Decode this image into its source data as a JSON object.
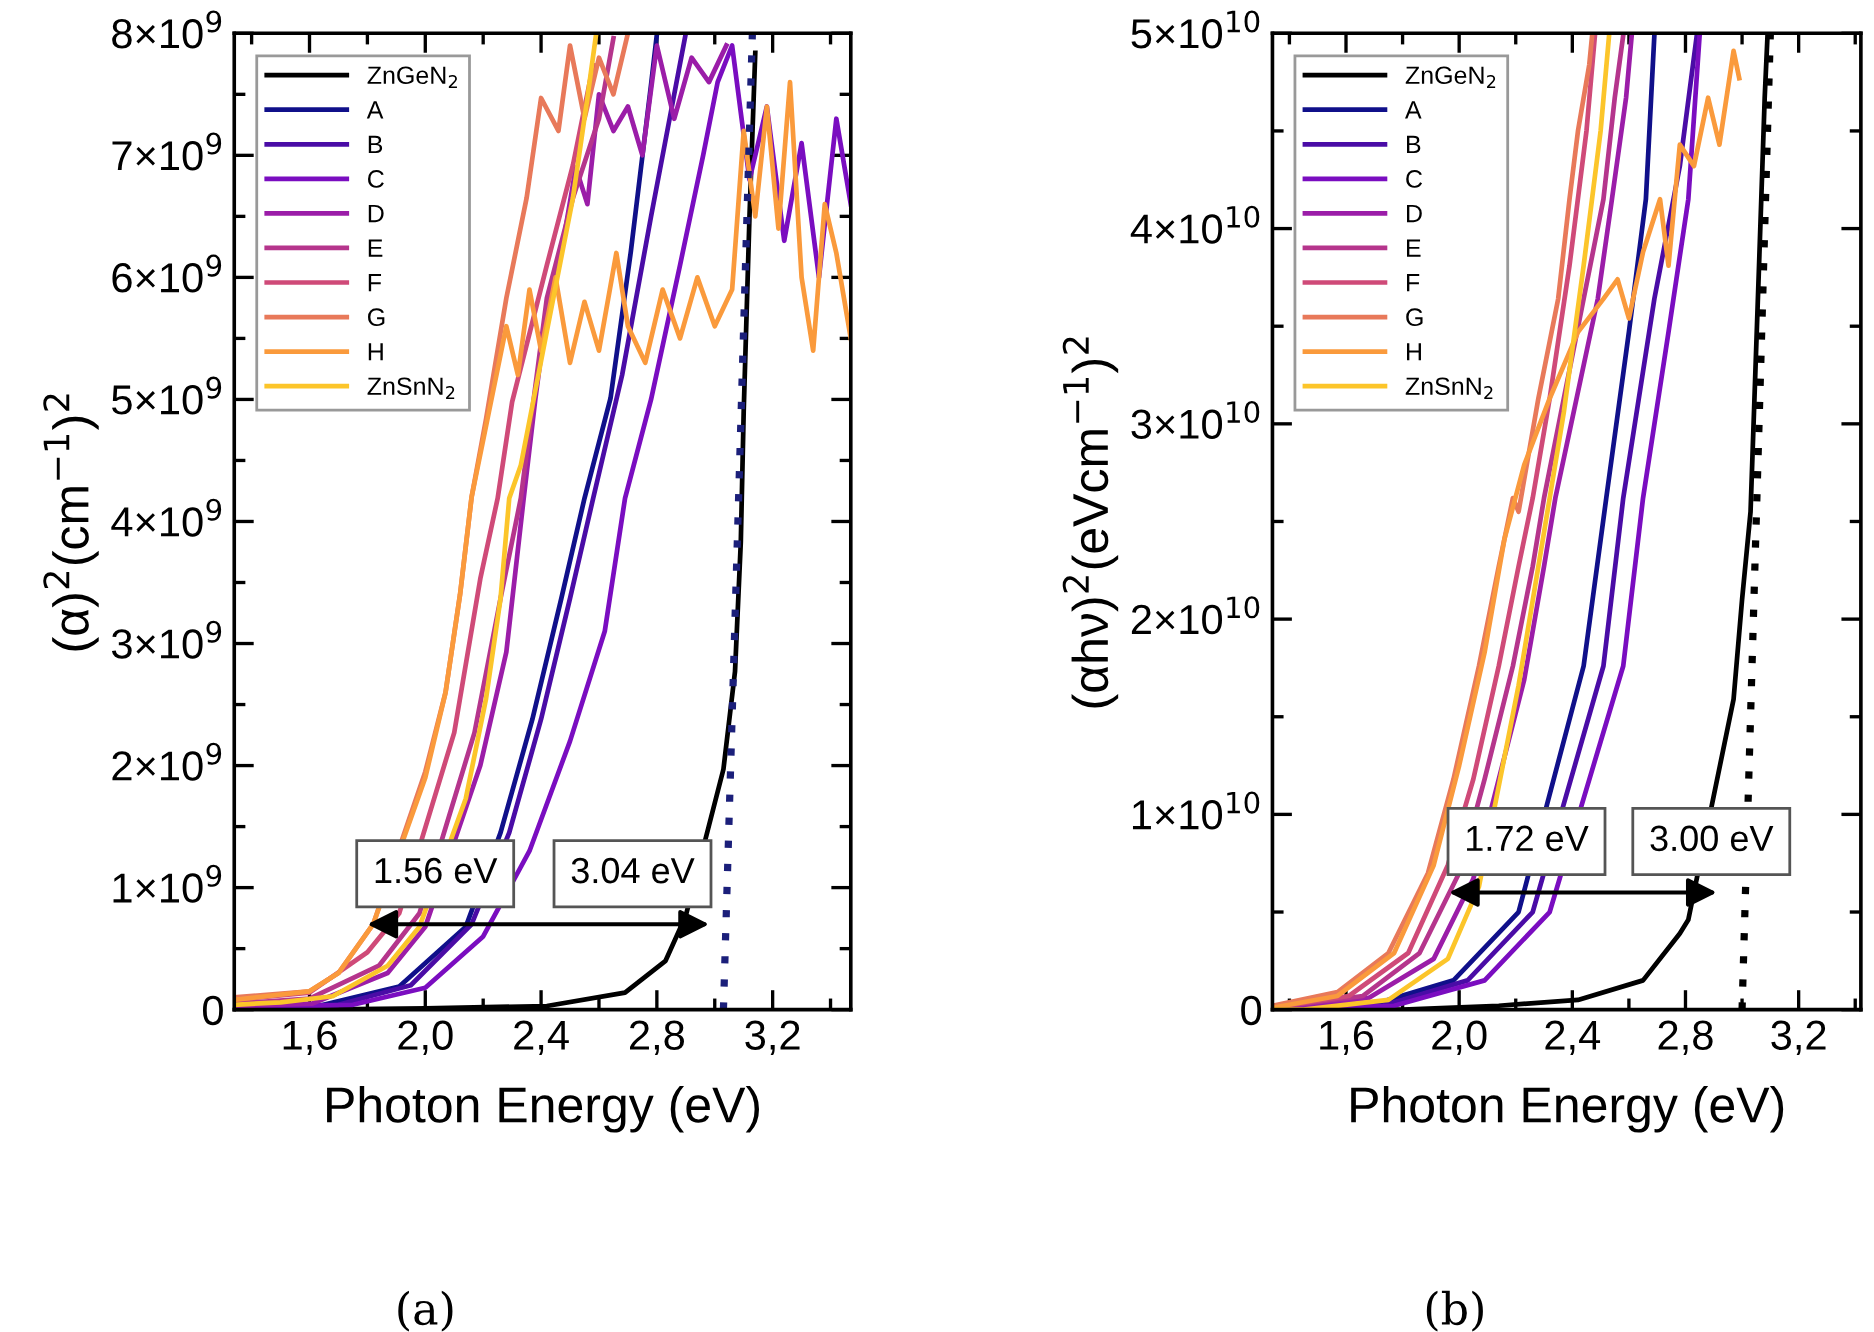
{
  "chart_data": [
    {
      "type": "line",
      "xlabel": "Photon Energy (eV)",
      "ylabel": "(α)$^{2}$(cm$^{−1}$)$^{2}$",
      "xlim": [
        1.34,
        3.47
      ],
      "ylim": [
        0,
        8000000000.0
      ],
      "xticks": [
        {
          "value": 1.4,
          "label": null
        },
        {
          "value": 1.6,
          "label": "1,6"
        },
        {
          "value": 1.8,
          "label": null
        },
        {
          "value": 2.0,
          "label": "2,0"
        },
        {
          "value": 2.2,
          "label": null
        },
        {
          "value": 2.4,
          "label": "2,4"
        },
        {
          "value": 2.6,
          "label": null
        },
        {
          "value": 2.8,
          "label": "2,8"
        },
        {
          "value": 3.0,
          "label": null
        },
        {
          "value": 3.2,
          "label": "3,2"
        },
        {
          "value": 3.4,
          "label": null
        }
      ],
      "yticks": [
        0,
        {
          "value": 500000000.0,
          "label": null
        },
        {
          "value": 1000000000.0,
          "label": "1×10$^{9}$"
        },
        {
          "value": 1500000000.0,
          "label": null
        },
        {
          "value": 2000000000.0,
          "label": "2×10$^{9}$"
        },
        {
          "value": 2500000000.0,
          "label": null
        },
        {
          "value": 3000000000.0,
          "label": "3×10$^{9}$"
        },
        {
          "value": 3500000000.0,
          "label": null
        },
        {
          "value": 4000000000.0,
          "label": "4×10$^{9}$"
        },
        {
          "value": 4500000000.0,
          "label": null
        },
        {
          "value": 5000000000.0,
          "label": "5×10$^{9}$"
        },
        {
          "value": 5500000000.0,
          "label": null
        },
        {
          "value": 6000000000.0,
          "label": "6×10$^{9}$"
        },
        {
          "value": 6500000000.0,
          "label": null
        },
        {
          "value": 7000000000.0,
          "label": "7×10$^{9}$"
        },
        {
          "value": 7500000000.0,
          "label": null
        },
        {
          "value": 8000000000.0,
          "label": "8×10$^{9}$"
        }
      ],
      "legend": "top left",
      "series": [
        {
          "name": "ZnGeN$_{2}$",
          "color": "#000000",
          "x": [
            1.34,
            1.6,
            2.0,
            2.42,
            2.69,
            2.83,
            2.9,
            3.03,
            3.07,
            3.09,
            3.1,
            3.12,
            3.14
          ],
          "values": [
            0,
            0,
            10000000.0,
            30000000.0,
            140000000.0,
            400000000.0,
            770000000.0,
            1970000000.0,
            2770000000.0,
            3830000000.0,
            4900000000.0,
            6500000000.0,
            7840000000.0
          ]
        },
        {
          "name": "A",
          "color": "#10108a",
          "x": [
            1.34,
            1.63,
            1.91,
            2.14,
            2.26,
            2.37,
            2.47,
            2.55,
            2.64,
            2.71,
            2.78,
            2.8
          ],
          "values": [
            20000000.0,
            30000000.0,
            190000000.0,
            680000000.0,
            1450000000.0,
            2380000000.0,
            3370000000.0,
            4190000000.0,
            5010000000.0,
            6210000000.0,
            7580000000.0,
            7990000000.0
          ]
        },
        {
          "name": "B",
          "color": "#4a0ca6",
          "x": [
            1.34,
            1.7,
            1.95,
            2.16,
            2.29,
            2.4,
            2.5,
            2.58,
            2.68,
            2.78,
            2.86,
            2.9
          ],
          "values": [
            20000000.0,
            40000000.0,
            200000000.0,
            700000000.0,
            1450000000.0,
            2380000000.0,
            3370000000.0,
            4190000000.0,
            5200000000.0,
            6500000000.0,
            7500000000.0,
            8000000000.0
          ]
        },
        {
          "name": "C",
          "color": "#7a0dc0",
          "x": [
            1.34,
            1.75,
            2.0,
            2.2,
            2.36,
            2.5,
            2.62,
            2.69,
            2.78,
            2.88,
            2.96,
            3.01,
            3.06,
            3.12,
            3.18,
            3.24,
            3.3,
            3.36,
            3.42,
            3.47
          ],
          "values": [
            20000000.0,
            40000000.0,
            180000000.0,
            600000000.0,
            1300000000.0,
            2200000000.0,
            3100000000.0,
            4190000000.0,
            5000000000.0,
            6100000000.0,
            7000000000.0,
            7600000000.0,
            7900000000.0,
            6800000000.0,
            7400000000.0,
            6300000000.0,
            7100000000.0,
            6000000000.0,
            7300000000.0,
            6600000000.0
          ]
        },
        {
          "name": "D",
          "color": "#9b1da8",
          "x": [
            1.34,
            1.61,
            1.87,
            2.0,
            2.19,
            2.28,
            2.34,
            2.38,
            2.43,
            2.47,
            2.52,
            2.56,
            2.6,
            2.65,
            2.7,
            2.75,
            2.8,
            2.86,
            2.92,
            2.98,
            3.04
          ],
          "values": [
            30000000.0,
            50000000.0,
            300000000.0,
            680000000.0,
            2000000000.0,
            2930000000.0,
            4190000000.0,
            5000000000.0,
            5900000000.0,
            6200000000.0,
            6900000000.0,
            6600000000.0,
            7500000000.0,
            7200000000.0,
            7400000000.0,
            7000000000.0,
            7900000000.0,
            7300000000.0,
            7800000000.0,
            7600000000.0,
            7900000000.0
          ]
        },
        {
          "name": "E",
          "color": "#b5358c",
          "x": [
            1.34,
            1.6,
            1.84,
            1.98,
            2.17,
            2.26,
            2.33,
            2.42,
            2.51,
            2.6,
            2.65
          ],
          "values": [
            50000000.0,
            90000000.0,
            360000000.0,
            790000000.0,
            2270000000.0,
            3370000000.0,
            4190000000.0,
            5830000000.0,
            6650000000.0,
            7300000000.0,
            7960000000.0
          ]
        },
        {
          "name": "F",
          "color": "#cf4a78",
          "x": [
            1.34,
            1.6,
            1.8,
            1.91,
            2.1,
            2.19,
            2.25,
            2.3,
            2.42,
            2.51,
            2.58
          ],
          "values": [
            80000000.0,
            140000000.0,
            470000000.0,
            790000000.0,
            2270000000.0,
            3530000000.0,
            4190000000.0,
            4980000000.0,
            6100000000.0,
            6920000000.0,
            7740000000.0
          ]
        },
        {
          "name": "G",
          "color": "#e8795a",
          "x": [
            1.34,
            1.6,
            1.7,
            1.82,
            2.0,
            2.07,
            2.12,
            2.16,
            2.21,
            2.28,
            2.35,
            2.4,
            2.46,
            2.5,
            2.55,
            2.6,
            2.65,
            2.7
          ],
          "values": [
            100000000.0,
            150000000.0,
            300000000.0,
            700000000.0,
            1950000000.0,
            2600000000.0,
            3400000000.0,
            4200000000.0,
            4840000000.0,
            5830000000.0,
            6650000000.0,
            7470000000.0,
            7200000000.0,
            7900000000.0,
            7300000000.0,
            7800000000.0,
            7500000000.0,
            8000000000.0
          ]
        },
        {
          "name": "H",
          "color": "#fa9a3c",
          "x": [
            1.34,
            1.6,
            1.7,
            1.82,
            2.0,
            2.07,
            2.12,
            2.16,
            2.22,
            2.28,
            2.32,
            2.36,
            2.4,
            2.45,
            2.5,
            2.55,
            2.6,
            2.66,
            2.7,
            2.76,
            2.82,
            2.88,
            2.94,
            3.0,
            3.06,
            3.1,
            3.14,
            3.18,
            3.22,
            3.26,
            3.3,
            3.34,
            3.38,
            3.42,
            3.47
          ],
          "values": [
            80000000.0,
            150000000.0,
            300000000.0,
            700000000.0,
            1900000000.0,
            2600000000.0,
            3400000000.0,
            4200000000.0,
            4900000000.0,
            5600000000.0,
            5200000000.0,
            5900000000.0,
            5400000000.0,
            6000000000.0,
            5300000000.0,
            5800000000.0,
            5400000000.0,
            6200000000.0,
            5600000000.0,
            5300000000.0,
            5900000000.0,
            5500000000.0,
            6000000000.0,
            5600000000.0,
            5900000000.0,
            7200000000.0,
            6500000000.0,
            7400000000.0,
            6400000000.0,
            7600000000.0,
            6000000000.0,
            5400000000.0,
            6600000000.0,
            6200000000.0,
            5500000000.0
          ]
        },
        {
          "name": "ZnSnN$_{2}$",
          "color": "#fcc52a",
          "x": [
            1.34,
            1.5,
            1.68,
            1.87,
            1.98,
            2.14,
            2.21,
            2.26,
            2.29,
            2.33,
            2.42,
            2.51,
            2.56,
            2.59
          ],
          "values": [
            40000000.0,
            60000000.0,
            110000000.0,
            360000000.0,
            680000000.0,
            1730000000.0,
            2550000000.0,
            3370000000.0,
            4190000000.0,
            4460000000.0,
            5560000000.0,
            6650000000.0,
            7470000000.0,
            7990000000.0
          ]
        },
        {
          "type": "line",
          "line_style": "dotted",
          "color": "#1b1f7a",
          "x": [
            3.03,
            3.13
          ],
          "values": [
            0,
            8000000000.0
          ]
        }
      ],
      "annotations": [
        "1.56 eV",
        "3.04 eV",
        "(a)"
      ]
    },
    {
      "type": "line",
      "xlabel": "Photon Energy (eV)",
      "ylabel": "(αhν)$^{2}$(eVcm$^{−1}$)$^{2}$",
      "xlim": [
        1.34,
        3.42
      ],
      "ylim": [
        0,
        50000000000.0
      ],
      "xticks": [
        {
          "value": 1.4,
          "label": null
        },
        {
          "value": 1.6,
          "label": "1,6"
        },
        {
          "value": 1.8,
          "label": null
        },
        {
          "value": 2.0,
          "label": "2,0"
        },
        {
          "value": 2.2,
          "label": null
        },
        {
          "value": 2.4,
          "label": "2,4"
        },
        {
          "value": 2.6,
          "label": null
        },
        {
          "value": 2.8,
          "label": "2,8"
        },
        {
          "value": 3.0,
          "label": null
        },
        {
          "value": 3.2,
          "label": "3,2"
        },
        {
          "value": 3.4,
          "label": null
        }
      ],
      "yticks": [
        0,
        {
          "value": 5000000000.0,
          "label": null
        },
        {
          "value": 10000000000.0,
          "label": "1×10$^{10}$"
        },
        {
          "value": 15000000000.0,
          "label": null
        },
        {
          "value": 20000000000.0,
          "label": "2×10$^{10}$"
        },
        {
          "value": 25000000000.0,
          "label": null
        },
        {
          "value": 30000000000.0,
          "label": "3×10$^{10}$"
        },
        {
          "value": 35000000000.0,
          "label": null
        },
        {
          "value": 40000000000.0,
          "label": "4×10$^{10}$"
        },
        {
          "value": 45000000000.0,
          "label": null
        },
        {
          "value": 50000000000.0,
          "label": "5×10$^{10}$"
        }
      ],
      "legend": "top left",
      "series": [
        {
          "name": "ZnGeN$_{2}$",
          "color": "#000000",
          "x": [
            1.34,
            1.8,
            2.14,
            2.42,
            2.65,
            2.78,
            2.81,
            2.97,
            3.0,
            3.03,
            3.06,
            3.08,
            3.09
          ],
          "values": [
            0,
            0,
            200000000.0,
            500000000.0,
            1500000000.0,
            3900000000.0,
            4600000000.0,
            15900000000.0,
            21000000000.0,
            25500000000.0,
            38100000000.0,
            46700000000.0,
            49900000000.0
          ]
        },
        {
          "name": "A",
          "color": "#10108a",
          "x": [
            1.34,
            1.68,
            1.98,
            2.21,
            2.44,
            2.52,
            2.6,
            2.66,
            2.69
          ],
          "values": [
            100000000.0,
            200000000.0,
            1500000000.0,
            5000000000.0,
            17600000000.0,
            26200000000.0,
            34700000000.0,
            41500000000.0,
            49900000000.0
          ]
        },
        {
          "name": "B",
          "color": "#4a0ca6",
          "x": [
            1.34,
            1.73,
            2.03,
            2.26,
            2.51,
            2.58,
            2.69,
            2.78,
            2.84
          ],
          "values": [
            100000000.0,
            200000000.0,
            1500000000.0,
            5000000000.0,
            17600000000.0,
            26200000000.0,
            36400000000.0,
            43200000000.0,
            49900000000.0
          ]
        },
        {
          "name": "C",
          "color": "#7a0dc0",
          "x": [
            1.34,
            1.77,
            2.09,
            2.32,
            2.58,
            2.65,
            2.74,
            2.81,
            2.85
          ],
          "values": [
            100000000.0,
            200000000.0,
            1500000000.0,
            5000000000.0,
            17600000000.0,
            26200000000.0,
            34700000000.0,
            41500000000.0,
            49900000000.0
          ]
        },
        {
          "name": "D",
          "color": "#9b1da8",
          "x": [
            1.34,
            1.68,
            1.91,
            2.05,
            2.23,
            2.3,
            2.34,
            2.39,
            2.49,
            2.54,
            2.59,
            2.61
          ],
          "values": [
            0,
            600000000.0,
            2600000000.0,
            6700000000.0,
            16900000000.0,
            22700000000.0,
            26200000000.0,
            29600000000.0,
            36400000000.0,
            41500000000.0,
            46700000000.0,
            49900000000.0
          ]
        },
        {
          "name": "E",
          "color": "#b5358c",
          "x": [
            1.34,
            1.66,
            1.86,
            2.0,
            2.09,
            2.19,
            2.26,
            2.3,
            2.37,
            2.44,
            2.51,
            2.55,
            2.58
          ],
          "values": [
            100000000.0,
            700000000.0,
            2900000000.0,
            7000000000.0,
            11800000000.0,
            17600000000.0,
            22700000000.0,
            26200000000.0,
            31300000000.0,
            36400000000.0,
            41500000000.0,
            46700000000.0,
            49900000000.0
          ]
        },
        {
          "name": "F",
          "color": "#cf4a78",
          "x": [
            1.34,
            1.61,
            1.82,
            1.96,
            2.05,
            2.14,
            2.21,
            2.26,
            2.32,
            2.39,
            2.45,
            2.48
          ],
          "values": [
            100000000.0,
            700000000.0,
            2900000000.0,
            7400000000.0,
            11800000000.0,
            17600000000.0,
            22700000000.0,
            26200000000.0,
            31300000000.0,
            38100000000.0,
            45000000000.0,
            49900000000.0
          ]
        },
        {
          "name": "G",
          "color": "#e8795a",
          "x": [
            1.34,
            1.57,
            1.75,
            1.89,
            1.98,
            2.07,
            2.14,
            2.19,
            2.21,
            2.28,
            2.35,
            2.39,
            2.42,
            2.46,
            2.47
          ],
          "values": [
            200000000.0,
            900000000.0,
            2900000000.0,
            7000000000.0,
            11800000000.0,
            17600000000.0,
            22700000000.0,
            26200000000.0,
            25500000000.0,
            31300000000.0,
            36400000000.0,
            41500000000.0,
            45000000000.0,
            48400000000.0,
            49900000000.0
          ]
        },
        {
          "name": "H",
          "color": "#fa9a3c",
          "x": [
            1.34,
            1.57,
            1.77,
            1.91,
            2.0,
            2.09,
            2.16,
            2.23,
            2.32,
            2.42,
            2.51,
            2.56,
            2.6,
            2.65,
            2.71,
            2.74,
            2.78,
            2.83,
            2.88,
            2.92,
            2.97,
            2.99
          ],
          "values": [
            100000000.0,
            700000000.0,
            2900000000.0,
            7400000000.0,
            12500000000.0,
            18300000000.0,
            24100000000.0,
            27900000000.0,
            31300000000.0,
            34700000000.0,
            36400000000.0,
            37400000000.0,
            35400000000.0,
            38800000000.0,
            41500000000.0,
            38100000000.0,
            44300000000.0,
            43200000000.0,
            46700000000.0,
            44300000000.0,
            49100000000.0,
            47700000000.0
          ]
        },
        {
          "name": "ZnSnN$_{2}$",
          "color": "#fcc52a",
          "x": [
            1.34,
            1.45,
            1.75,
            1.96,
            2.07,
            2.21,
            2.28,
            2.32,
            2.37,
            2.44,
            2.5,
            2.53
          ],
          "values": [
            0,
            0,
            500000000.0,
            2600000000.0,
            6300000000.0,
            16600000000.0,
            22700000000.0,
            26200000000.0,
            30600000000.0,
            38100000000.0,
            45000000000.0,
            49900000000.0
          ]
        },
        {
          "type": "line",
          "line_style": "dotted",
          "color": "#000000",
          "x": [
            3.0,
            3.1
          ],
          "values": [
            0,
            50000000000.0
          ]
        }
      ],
      "annotations": [
        "1.72 eV",
        "3.00 eV",
        "(b)"
      ]
    }
  ]
}
